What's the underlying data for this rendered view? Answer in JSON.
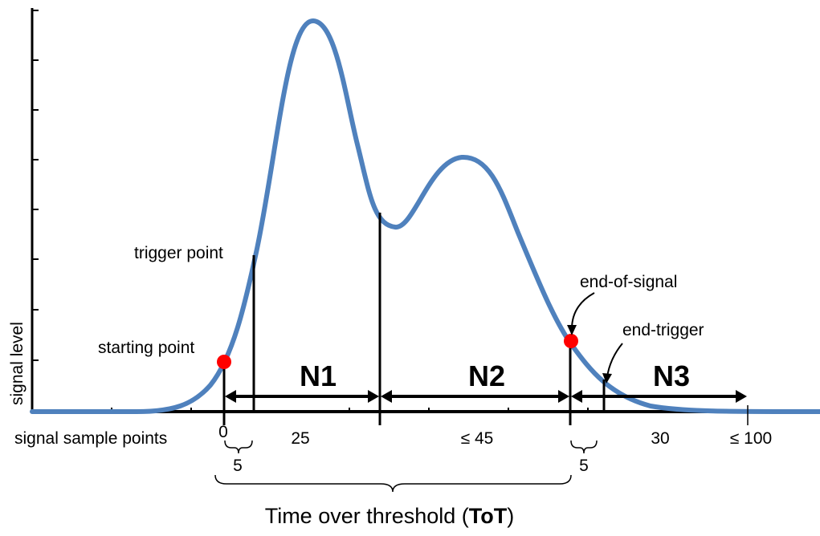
{
  "axis": {
    "y_label": "signal level",
    "x_label": "signal sample points"
  },
  "annotations": {
    "trigger_point": "trigger point",
    "starting_point": "starting point",
    "end_of_signal": "end-of-signal",
    "end_trigger": "end-trigger"
  },
  "segments": {
    "n1": "N1",
    "n2": "N2",
    "n3": "N3"
  },
  "sample_labels": {
    "zero": "0",
    "twenty_five": "25",
    "le_45": "≤ 45",
    "thirty": "30",
    "le_100": "≤ 100",
    "five_left": "5",
    "five_right": "5"
  },
  "title": {
    "prefix": "Time over threshold (",
    "bold": "ToT",
    "suffix": ")"
  },
  "colors": {
    "signal": "#4f81bd",
    "marker": "#ff0000",
    "ink": "#000000"
  }
}
